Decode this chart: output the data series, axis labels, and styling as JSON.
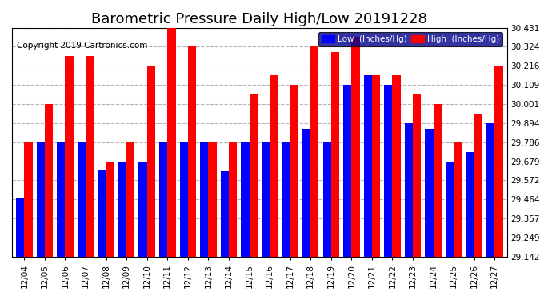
{
  "title": "Barometric Pressure Daily High/Low 20191228",
  "copyright": "Copyright 2019 Cartronics.com",
  "dates": [
    "12/04",
    "12/05",
    "12/06",
    "12/07",
    "12/08",
    "12/09",
    "12/10",
    "12/11",
    "12/12",
    "12/13",
    "12/14",
    "12/15",
    "12/16",
    "12/17",
    "12/18",
    "12/19",
    "12/20",
    "12/21",
    "12/22",
    "12/23",
    "12/24",
    "12/25",
    "12/26",
    "12/27"
  ],
  "low": [
    29.47,
    29.786,
    29.786,
    29.786,
    29.634,
    29.679,
    29.679,
    29.786,
    29.786,
    29.786,
    29.625,
    29.786,
    29.786,
    29.786,
    29.86,
    29.786,
    30.108,
    30.162,
    30.109,
    29.894,
    29.86,
    29.679,
    29.732,
    29.894
  ],
  "high": [
    29.786,
    30.001,
    30.27,
    30.27,
    29.679,
    29.786,
    30.216,
    30.431,
    30.324,
    29.786,
    29.786,
    30.054,
    30.162,
    30.109,
    30.324,
    30.294,
    30.378,
    30.162,
    30.162,
    30.054,
    30.001,
    29.786,
    29.948,
    30.216
  ],
  "ylim_min": 29.142,
  "ylim_max": 30.431,
  "yticks": [
    29.142,
    29.249,
    29.357,
    29.464,
    29.572,
    29.679,
    29.786,
    29.894,
    30.001,
    30.109,
    30.216,
    30.324,
    30.431
  ],
  "low_color": "#0000ff",
  "high_color": "#ff0000",
  "bg_color": "#ffffff",
  "legend_low_label": "Low  (Inches/Hg)",
  "legend_high_label": "High  (Inches/Hg)",
  "title_fontsize": 13,
  "copyright_fontsize": 7.5
}
